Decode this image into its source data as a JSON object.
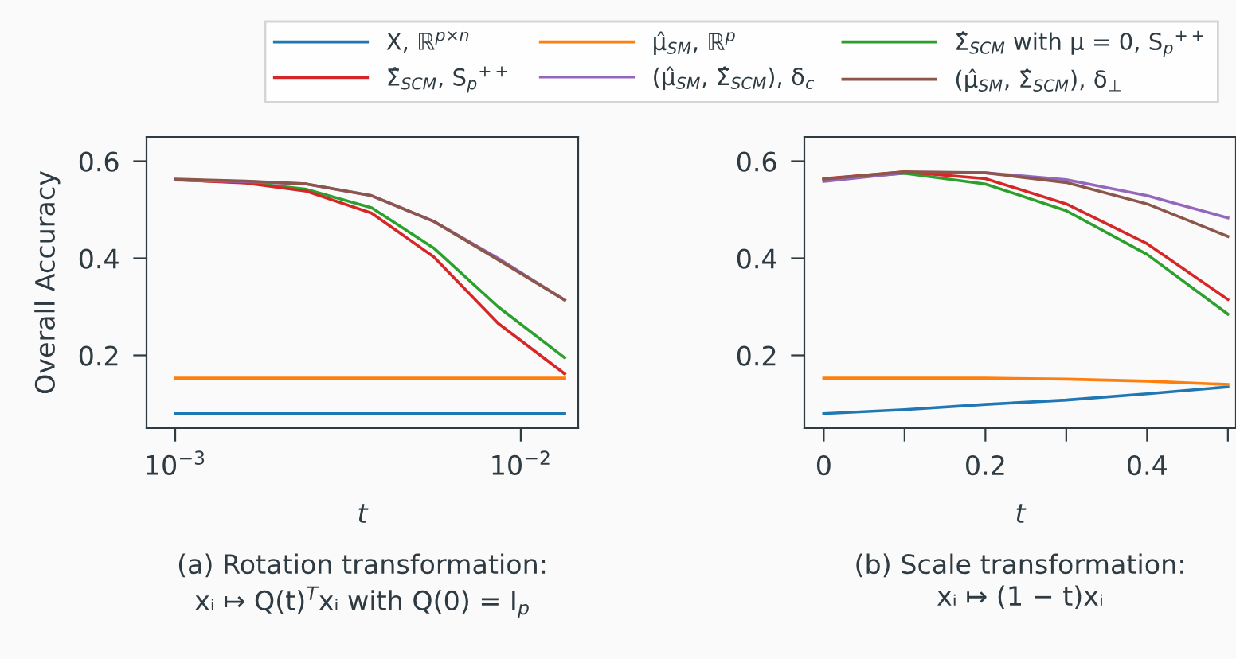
{
  "chart_data": [
    {
      "type": "line",
      "xlabel": "t",
      "ylabel": "Overall Accuracy",
      "log": "x",
      "xlim": [
        0.000826,
        0.01466
      ],
      "xticks": [
        {
          "value": 0.001,
          "label": "10$^{−3}$"
        },
        {
          "value": 0.01,
          "label": "10$^{−2}$"
        }
      ],
      "ylim": [
        0.05,
        0.65
      ],
      "yticks": [
        0.2,
        0.4,
        0.6
      ],
      "grid": false,
      "legend": "top",
      "marker": "none",
      "line_style": "solid",
      "x": [
        0.001,
        0.0016,
        0.0024,
        0.0037,
        0.0056,
        0.0086,
        0.0134
      ],
      "series": [
        {
          "name": "X, ℝ$^{p×n}$",
          "color": "#1f77b4",
          "values": [
            0.08,
            0.08,
            0.08,
            0.08,
            0.08,
            0.08,
            0.08
          ]
        },
        {
          "name": "μ̂$_{SM}$, ℝ$^{p}$",
          "color": "#ff7f0e",
          "values": [
            0.153,
            0.153,
            0.153,
            0.153,
            0.153,
            0.153,
            0.153
          ]
        },
        {
          "name": "Σ̂$_{SCM}$ with μ = 0, S$_{p}$$^{++}$",
          "color": "#2ca02c",
          "values": [
            0.562,
            0.556,
            0.542,
            0.504,
            0.421,
            0.3,
            0.195
          ]
        },
        {
          "name": "Σ̂$_{SCM}$, S$_{p}$$^{++}$",
          "color": "#d62728",
          "values": [
            0.562,
            0.555,
            0.538,
            0.493,
            0.403,
            0.266,
            0.162
          ]
        },
        {
          "name": "(μ̂$_{SM}$, Σ̂$_{SCM}$), δ$_{c}$",
          "color": "#9467bd",
          "values": [
            0.561,
            0.558,
            0.553,
            0.529,
            0.476,
            0.4,
            0.314
          ]
        },
        {
          "name": "(μ̂$_{SM}$, Σ̂$_{SCM}$), δ$_{⊥}$",
          "color": "#8c564b",
          "values": [
            0.563,
            0.559,
            0.553,
            0.529,
            0.476,
            0.397,
            0.314
          ]
        }
      ],
      "annotations": [
        "(a) Rotation transformation:\nxᵢ ↦ Q(t)$^{T}$xᵢ with Q(0) = I$_{p}$"
      ]
    },
    {
      "type": "line",
      "xlabel": "t",
      "xlim": [
        -0.024,
        0.51
      ],
      "xticks": [
        0,
        {
          "value": 0.1,
          "label": null
        },
        0.2,
        {
          "value": 0.3,
          "label": null
        },
        0.4,
        {
          "value": 0.5,
          "label": null
        }
      ],
      "ylim": [
        0.05,
        0.65
      ],
      "yticks": [
        0.2,
        0.4,
        0.6
      ],
      "grid": false,
      "marker": "none",
      "line_style": "solid",
      "x": [
        0,
        0.1,
        0.2,
        0.3,
        0.4,
        0.5
      ],
      "series": [
        {
          "color": "#1f77b4",
          "values": [
            0.08,
            0.088,
            0.099,
            0.108,
            0.121,
            0.135
          ]
        },
        {
          "color": "#ff7f0e",
          "values": [
            0.153,
            0.153,
            0.153,
            0.151,
            0.147,
            0.14
          ]
        },
        {
          "color": "#2ca02c",
          "values": [
            0.562,
            0.575,
            0.553,
            0.498,
            0.408,
            0.285
          ]
        },
        {
          "color": "#d62728",
          "values": [
            0.564,
            0.578,
            0.564,
            0.512,
            0.43,
            0.315
          ]
        },
        {
          "color": "#9467bd",
          "values": [
            0.558,
            0.576,
            0.576,
            0.562,
            0.529,
            0.483
          ]
        },
        {
          "color": "#8c564b",
          "values": [
            0.563,
            0.578,
            0.576,
            0.556,
            0.512,
            0.445
          ]
        }
      ],
      "annotations": [
        "(b) Scale transformation:\nxᵢ ↦ (1 − t)xᵢ"
      ]
    }
  ]
}
